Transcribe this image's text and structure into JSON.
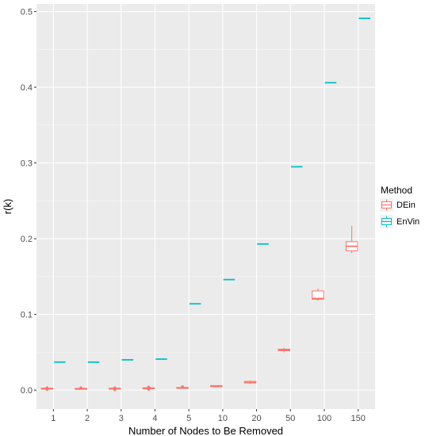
{
  "chart_data": {
    "type": "boxplot",
    "xlabel": "Number of Nodes to Be Removed",
    "ylabel": "r(k)",
    "categories": [
      "1",
      "2",
      "3",
      "4",
      "5",
      "10",
      "20",
      "50",
      "100",
      "150"
    ],
    "ylim": [
      -0.025,
      0.51
    ],
    "yticks": [
      0.0,
      0.1,
      0.2,
      0.3,
      0.4,
      0.5
    ],
    "ytick_labels": [
      "0.0",
      "0.1",
      "0.2",
      "0.3",
      "0.4",
      "0.5"
    ],
    "grid": true,
    "legend": {
      "title": "Method",
      "position": "right",
      "entries": [
        "DEin",
        "EnVin"
      ]
    },
    "series": [
      {
        "name": "DEin",
        "color": "#F8766D",
        "boxes": [
          {
            "min": 0.001,
            "q1": 0.0015,
            "median": 0.002,
            "q3": 0.0025,
            "max": 0.003,
            "outliers": [
              0.001,
              0.003
            ]
          },
          {
            "min": 0.0015,
            "q1": 0.0018,
            "median": 0.002,
            "q3": 0.0022,
            "max": 0.0025,
            "outliers": [
              0.003
            ]
          },
          {
            "min": 0.001,
            "q1": 0.0015,
            "median": 0.002,
            "q3": 0.0025,
            "max": 0.003,
            "outliers": [
              0.0005,
              0.003
            ]
          },
          {
            "min": 0.0015,
            "q1": 0.002,
            "median": 0.0025,
            "q3": 0.003,
            "max": 0.0035,
            "outliers": [
              0.001,
              0.004
            ]
          },
          {
            "min": 0.002,
            "q1": 0.0025,
            "median": 0.003,
            "q3": 0.0035,
            "max": 0.004,
            "outliers": [
              0.0045
            ]
          },
          {
            "min": 0.004,
            "q1": 0.0045,
            "median": 0.005,
            "q3": 0.006,
            "max": 0.0065,
            "outliers": []
          },
          {
            "min": 0.008,
            "q1": 0.0095,
            "median": 0.01,
            "q3": 0.0115,
            "max": 0.013,
            "outliers": []
          },
          {
            "min": 0.05,
            "q1": 0.052,
            "median": 0.053,
            "q3": 0.054,
            "max": 0.056,
            "outliers": []
          },
          {
            "min": 0.118,
            "q1": 0.12,
            "median": 0.121,
            "q3": 0.131,
            "max": 0.134,
            "outliers": []
          },
          {
            "min": 0.181,
            "q1": 0.184,
            "median": 0.19,
            "q3": 0.196,
            "max": 0.217,
            "outliers": []
          }
        ]
      },
      {
        "name": "EnVin",
        "color": "#00BFC4",
        "values": [
          0.037,
          0.037,
          0.04,
          0.041,
          0.114,
          0.146,
          0.193,
          0.295,
          0.406,
          0.491
        ]
      }
    ]
  }
}
